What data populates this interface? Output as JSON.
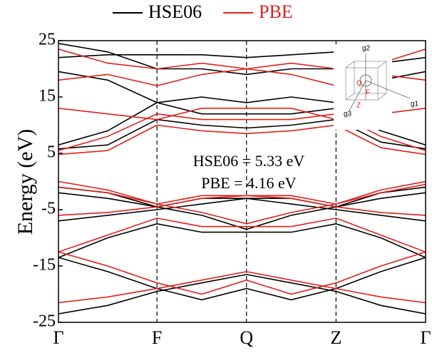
{
  "chart_data": {
    "type": "band",
    "ylabel": "Energy (eV)",
    "ylim": [
      -25,
      25
    ],
    "yticks": [
      -25,
      -15,
      -5,
      5,
      15,
      25
    ],
    "xlim": [
      0,
      4.1
    ],
    "xticks": [
      {
        "value": 0,
        "label": "Γ"
      },
      {
        "value": 1.1,
        "label": "F"
      },
      {
        "value": 2.1,
        "label": "Q"
      },
      {
        "value": 3.1,
        "label": "Z"
      },
      {
        "value": 4.1,
        "label": "Γ"
      }
    ],
    "legend": "top",
    "annotations": [
      "HSE06 = 5.33 eV",
      "PBE = 4.16 eV"
    ],
    "inset_labels": [
      "g1",
      "g2",
      "g3",
      "F",
      "Q",
      "Z"
    ],
    "x": [
      0,
      0.55,
      1.1,
      1.6,
      2.1,
      2.6,
      3.1,
      3.6,
      4.1
    ],
    "series": [
      {
        "name": "HSE06",
        "color": "#000000",
        "bands": [
          [
            -23.5,
            -22,
            -19.5,
            -18,
            -16.5,
            -18,
            -19.5,
            -22,
            -23.5
          ],
          [
            -13.5,
            -16,
            -19,
            -21,
            -19,
            -21,
            -19,
            -16,
            -13.5
          ],
          [
            -13.5,
            -10,
            -7.5,
            -9,
            -9,
            -9,
            -7.5,
            -10,
            -13.5
          ],
          [
            -7,
            -6,
            -5,
            -4,
            -3,
            -4,
            -5,
            -6,
            -7
          ],
          [
            -2,
            -3,
            -4.5,
            -6,
            -8.5,
            -6,
            -4.5,
            -3,
            -2
          ],
          [
            -1,
            -2,
            -4.5,
            -3,
            -3,
            -3,
            -4.5,
            -2,
            -1
          ],
          [
            5.8,
            6.5,
            11,
            10,
            9.5,
            10,
            11,
            7,
            5.8
          ],
          [
            6.5,
            9,
            14,
            12,
            12,
            12,
            13,
            9,
            6.5
          ],
          [
            19.5,
            18,
            14,
            15,
            14,
            15,
            14,
            18,
            19.5
          ],
          [
            22,
            22.5,
            22.5,
            22.5,
            22,
            22.5,
            23,
            null,
            null
          ],
          [
            24.5,
            23,
            20,
            20,
            19,
            20,
            20,
            21,
            22
          ]
        ]
      },
      {
        "name": "PBE",
        "color": "#e0201b",
        "bands": [
          [
            -21.5,
            -20.5,
            -19,
            -17.5,
            -16,
            -17.5,
            -19,
            -20.5,
            -21.5
          ],
          [
            -12.5,
            -15,
            -18,
            -20,
            -17.5,
            -20,
            -18,
            -15,
            -12.5
          ],
          [
            -12.5,
            -9.5,
            -6.5,
            -8,
            -8,
            -8,
            -6.5,
            -9.5,
            -12.5
          ],
          [
            -6,
            -5.5,
            -4.5,
            -3,
            -2.5,
            -3,
            -4.5,
            -5.5,
            -6
          ],
          [
            -1,
            -2,
            -4,
            -5.5,
            -7.5,
            -5.5,
            -4,
            -2,
            -0.5
          ],
          [
            0,
            -1.5,
            -4,
            -2.5,
            -2.5,
            -2.5,
            -4,
            -1.5,
            0
          ],
          [
            4.8,
            5.5,
            10,
            9,
            8.5,
            9,
            10,
            6,
            4.8
          ],
          [
            5.5,
            8,
            12,
            11,
            11,
            11,
            12,
            8,
            5.5
          ],
          [
            13,
            12,
            11,
            13,
            13,
            13,
            11,
            12,
            13
          ],
          [
            18,
            19,
            17,
            19,
            20,
            19,
            17,
            19,
            18
          ],
          [
            23.5,
            21,
            20,
            21,
            20,
            21,
            20,
            21,
            23.5
          ]
        ]
      }
    ]
  }
}
